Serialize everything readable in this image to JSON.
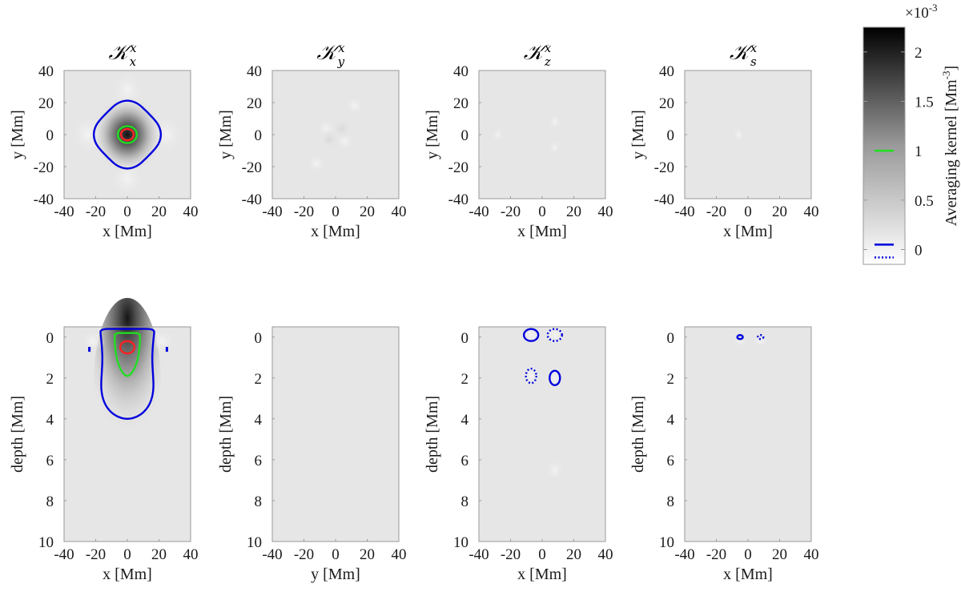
{
  "figure": {
    "colorbar": {
      "label": "Averaging kernel [Mm",
      "label_sup": "-3",
      "label_end": "]",
      "multiplier": "×10",
      "multiplier_exp": "-3",
      "tick_labels": [
        "2",
        "1.5",
        "1",
        "0.5",
        "0"
      ],
      "tick_values": [
        2,
        1.5,
        1,
        0.5,
        0
      ],
      "range": [
        -0.15,
        2.25
      ],
      "contour_markers": [
        {
          "value": 1,
          "color": "#22dd22",
          "style": "solid"
        },
        {
          "value": 0.05,
          "color": "#0000dd",
          "style": "solid"
        },
        {
          "value": -0.08,
          "color": "#0000dd",
          "style": "dotted"
        }
      ]
    },
    "panels": [
      {
        "title_sub": "x",
        "title_sup": "x",
        "xlabel": "x [Mm]",
        "ylabel": "y [Mm]",
        "xticks": [
          "-40",
          "-20",
          "0",
          "20",
          "40"
        ],
        "yticks": [
          "40",
          "20",
          "0",
          "-20",
          "-40"
        ]
      },
      {
        "title_sub": "y",
        "title_sup": "x",
        "xlabel": "x [Mm]",
        "ylabel": "y [Mm]",
        "xticks": [
          "-40",
          "-20",
          "0",
          "20",
          "40"
        ],
        "yticks": [
          "40",
          "20",
          "0",
          "-20",
          "-40"
        ]
      },
      {
        "title_sub": "z",
        "title_sup": "x",
        "xlabel": "x [Mm]",
        "ylabel": "y [Mm]",
        "xticks": [
          "-40",
          "-20",
          "0",
          "20",
          "40"
        ],
        "yticks": [
          "40",
          "20",
          "0",
          "-20",
          "-40"
        ]
      },
      {
        "title_sub": "s",
        "title_sup": "x",
        "xlabel": "x [Mm]",
        "ylabel": "y [Mm]",
        "xticks": [
          "-40",
          "-20",
          "0",
          "20",
          "40"
        ],
        "yticks": [
          "40",
          "20",
          "0",
          "-20",
          "-40"
        ]
      },
      {
        "xlabel": "x [Mm]",
        "ylabel": "depth [Mm]",
        "xticks": [
          "-40",
          "-20",
          "0",
          "20",
          "40"
        ],
        "yticks": [
          "0",
          "2",
          "4",
          "6",
          "8",
          "10"
        ]
      },
      {
        "xlabel": "y [Mm]",
        "ylabel": "depth [Mm]",
        "xticks": [
          "-40",
          "-20",
          "0",
          "20",
          "40"
        ],
        "yticks": [
          "0",
          "2",
          "4",
          "6",
          "8",
          "10"
        ]
      },
      {
        "xlabel": "x [Mm]",
        "ylabel": "depth [Mm]",
        "xticks": [
          "-40",
          "-20",
          "0",
          "20",
          "40"
        ],
        "yticks": [
          "0",
          "2",
          "4",
          "6",
          "8",
          "10"
        ]
      },
      {
        "xlabel": "x [Mm]",
        "ylabel": "depth [Mm]",
        "xticks": [
          "-40",
          "-20",
          "0",
          "20",
          "40"
        ],
        "yticks": [
          "0",
          "2",
          "4",
          "6",
          "8",
          "10"
        ]
      }
    ],
    "title_symbol": "𝒦"
  },
  "chart_data": {
    "type": "heatmap",
    "colormap": "gray-reversed",
    "unit": "Mm^-3 (×10^-3)",
    "horizontal_panels": {
      "x_range": [
        -40,
        40
      ],
      "y_range": [
        -40,
        40
      ],
      "kernels": [
        {
          "component": "K_x^x",
          "peak_value": 2.2,
          "peak_location": [
            0,
            0
          ],
          "contours": [
            {
              "level": 0.05,
              "color": "#0000dd",
              "style": "solid",
              "half_width": 20
            },
            {
              "level": 1,
              "color": "#22dd22",
              "style": "solid",
              "half_width": 6
            },
            {
              "level": 1.5,
              "color": "#ff2222",
              "style": "solid",
              "half_width": 4
            }
          ]
        },
        {
          "component": "K_y^x",
          "contours": []
        },
        {
          "component": "K_z^x",
          "contours": []
        },
        {
          "component": "K_s^x",
          "contours": []
        }
      ]
    },
    "vertical_panels": {
      "x_range": [
        -40,
        40
      ],
      "depth_range": [
        10,
        -0.5
      ],
      "kernels": [
        {
          "component": "K_x^x",
          "peak_depth": 0.5,
          "contours": [
            {
              "level": 0.05,
              "color": "#0000dd",
              "style": "solid",
              "x_extent": [
                -17,
                17
              ],
              "depth_extent": [
                -0.4,
                4.0
              ]
            },
            {
              "level": 1,
              "color": "#22dd22",
              "style": "solid",
              "x_extent": [
                -8,
                8
              ],
              "depth_extent": [
                -0.2,
                1.9
              ]
            },
            {
              "level": 1.5,
              "color": "#ff2222",
              "style": "solid",
              "x_extent": [
                -4.5,
                4.5
              ],
              "depth_extent": [
                0.2,
                0.8
              ]
            }
          ]
        },
        {
          "component": "K_y^x",
          "contours": []
        },
        {
          "component": "K_z^x",
          "contours": [
            {
              "level": 0.05,
              "color": "#0000dd",
              "style": "solid",
              "center": [
                -7,
                -0.1
              ]
            },
            {
              "level": -0.08,
              "color": "#0000dd",
              "style": "dotted",
              "center": [
                8,
                -0.1
              ]
            },
            {
              "level": -0.08,
              "color": "#0000dd",
              "style": "dotted",
              "center": [
                -7,
                1.9
              ]
            },
            {
              "level": 0.05,
              "color": "#0000dd",
              "style": "solid",
              "center": [
                8,
                2.0
              ]
            }
          ]
        },
        {
          "component": "K_s^x",
          "contours": [
            {
              "level": 0.05,
              "color": "#0000dd",
              "style": "solid",
              "center": [
                -5,
                0
              ]
            },
            {
              "level": -0.08,
              "color": "#0000dd",
              "style": "dotted",
              "center": [
                8,
                0
              ]
            }
          ]
        }
      ]
    }
  }
}
